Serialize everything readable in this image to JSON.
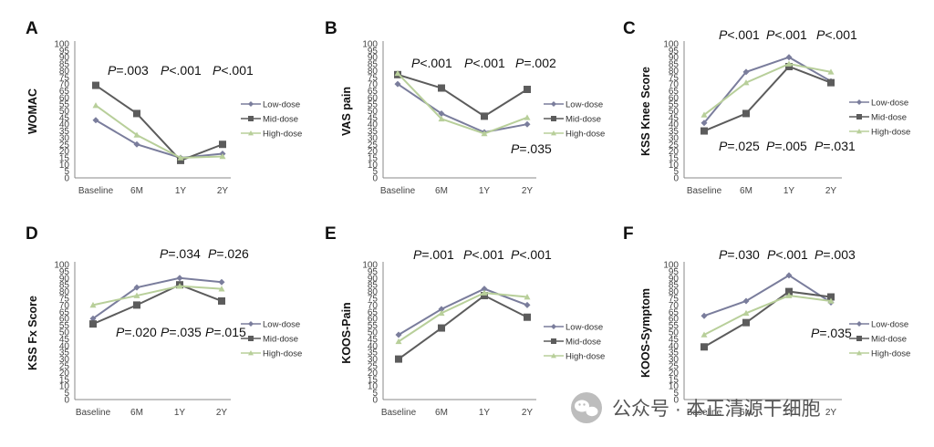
{
  "colors": {
    "low": "#7a7d9c",
    "mid": "#5c5c5c",
    "high": "#b8cf9a"
  },
  "watermark": {
    "text": "公众号 · 本正清源干细胞",
    "icon": "wechat-icon"
  },
  "chart_data": [
    {
      "type": "line",
      "panel": "A",
      "ylabel": "WOMAC",
      "categories": [
        "Baseline",
        "6M",
        "1Y",
        "2Y"
      ],
      "yticks": [
        "0",
        "5",
        "10",
        "15",
        "20",
        "25",
        "30",
        "35",
        "40",
        "45",
        "50",
        "55",
        "60",
        "65",
        "70",
        "75",
        "80",
        "85",
        "90",
        "95",
        "100"
      ],
      "ylim": [
        0,
        100
      ],
      "series": [
        {
          "name": "Low-dose",
          "values": [
            43,
            25,
            15,
            18
          ]
        },
        {
          "name": "Mid-dose",
          "values": [
            69,
            48,
            13,
            25
          ]
        },
        {
          "name": "High-dose",
          "values": [
            54,
            32,
            15,
            16
          ]
        }
      ],
      "pvalues_top": [
        {
          "prefix": "P",
          "value": "=.003"
        },
        {
          "prefix": "P",
          "value": "<.001"
        },
        {
          "prefix": "P",
          "value": "<.001"
        }
      ],
      "pvalues_bottom": [],
      "legend": "right"
    },
    {
      "type": "line",
      "panel": "B",
      "ylabel": "VAS pain",
      "categories": [
        "Baseline",
        "6M",
        "1Y",
        "2Y"
      ],
      "yticks": [
        "0",
        "5",
        "10",
        "15",
        "20",
        "25",
        "30",
        "35",
        "40",
        "45",
        "50",
        "55",
        "60",
        "65",
        "70",
        "75",
        "80",
        "85",
        "90",
        "95",
        "100"
      ],
      "ylim": [
        0,
        100
      ],
      "series": [
        {
          "name": "Low-dose",
          "values": [
            70,
            48,
            34,
            40
          ]
        },
        {
          "name": "Mid-dose",
          "values": [
            77,
            67,
            46,
            66
          ]
        },
        {
          "name": "High-dose",
          "values": [
            78,
            44,
            33,
            45
          ]
        }
      ],
      "pvalues_top": [
        {
          "prefix": "P",
          "value": "<.001"
        },
        {
          "prefix": "P",
          "value": "<.001"
        },
        {
          "prefix": "P",
          "value": "=.002"
        }
      ],
      "pvalues_bottom": [
        {
          "prefix": "P",
          "value": "=.035"
        }
      ],
      "legend": "right"
    },
    {
      "type": "line",
      "panel": "C",
      "ylabel": "KSS Knee Score",
      "categories": [
        "Baseline",
        "6M",
        "1Y",
        "2Y"
      ],
      "yticks": [
        "0",
        "5",
        "10",
        "15",
        "20",
        "25",
        "30",
        "35",
        "40",
        "45",
        "50",
        "55",
        "60",
        "65",
        "70",
        "75",
        "80",
        "85",
        "90",
        "95",
        "100"
      ],
      "ylim": [
        0,
        100
      ],
      "series": [
        {
          "name": "Low-dose",
          "values": [
            41,
            79,
            90,
            72
          ]
        },
        {
          "name": "Mid-dose",
          "values": [
            35,
            48,
            83,
            71
          ]
        },
        {
          "name": "High-dose",
          "values": [
            47,
            71,
            85,
            79
          ]
        }
      ],
      "pvalues_top": [
        {
          "prefix": "P",
          "value": "<.001"
        },
        {
          "prefix": "P",
          "value": "<.001"
        },
        {
          "prefix": "P",
          "value": "<.001"
        }
      ],
      "pvalues_bottom": [
        {
          "prefix": "P",
          "value": "=.025"
        },
        {
          "prefix": "P",
          "value": "=.005"
        },
        {
          "prefix": "P",
          "value": "=.031"
        }
      ],
      "legend": "right"
    },
    {
      "type": "line",
      "panel": "D",
      "ylabel": "KSS Fx Score",
      "categories": [
        "Baseline",
        "6M",
        "1Y",
        "2Y"
      ],
      "yticks": [
        "0",
        "5",
        "10",
        "15",
        "20",
        "25",
        "30",
        "35",
        "40",
        "45",
        "50",
        "55",
        "60",
        "65",
        "70",
        "75",
        "80",
        "85",
        "90",
        "95",
        "100"
      ],
      "ylim": [
        0,
        100
      ],
      "series": [
        {
          "name": "Low-dose",
          "values": [
            60,
            83,
            90,
            87
          ]
        },
        {
          "name": "Mid-dose",
          "values": [
            56,
            70,
            85,
            73
          ]
        },
        {
          "name": "High-dose",
          "values": [
            70,
            77,
            84,
            82
          ]
        }
      ],
      "pvalues_top": [
        {
          "prefix": "P",
          "value": "=.034"
        },
        {
          "prefix": "P",
          "value": "=.026"
        }
      ],
      "pvalues_bottom": [
        {
          "prefix": "P",
          "value": "=.020"
        },
        {
          "prefix": "P",
          "value": "=.035"
        },
        {
          "prefix": "P",
          "value": "=.015"
        }
      ],
      "legend": "right"
    },
    {
      "type": "line",
      "panel": "E",
      "ylabel": "KOOS-Pain",
      "categories": [
        "Baseline",
        "6M",
        "1Y",
        "2Y"
      ],
      "yticks": [
        "0",
        "5",
        "10",
        "15",
        "20",
        "25",
        "30",
        "35",
        "40",
        "45",
        "50",
        "55",
        "60",
        "65",
        "70",
        "75",
        "80",
        "85",
        "90",
        "95",
        "100"
      ],
      "ylim": [
        0,
        100
      ],
      "series": [
        {
          "name": "Low-dose",
          "values": [
            48,
            67,
            82,
            70
          ]
        },
        {
          "name": "Mid-dose",
          "values": [
            30,
            53,
            77,
            61
          ]
        },
        {
          "name": "High-dose",
          "values": [
            43,
            64,
            79,
            76
          ]
        }
      ],
      "pvalues_top": [
        {
          "prefix": "P",
          "value": "=.001"
        },
        {
          "prefix": "P",
          "value": "<.001"
        },
        {
          "prefix": "P",
          "value": "<.001"
        }
      ],
      "pvalues_bottom": [],
      "legend": "right"
    },
    {
      "type": "line",
      "panel": "F",
      "ylabel": "KOOS-Symptom",
      "categories": [
        "Baseline",
        "6M",
        "1Y",
        "2Y"
      ],
      "yticks": [
        "0",
        "5",
        "10",
        "15",
        "20",
        "25",
        "30",
        "35",
        "40",
        "45",
        "50",
        "55",
        "60",
        "65",
        "70",
        "75",
        "80",
        "85",
        "90",
        "95",
        "100"
      ],
      "ylim": [
        0,
        100
      ],
      "series": [
        {
          "name": "Low-dose",
          "values": [
            62,
            73,
            92,
            72
          ]
        },
        {
          "name": "Mid-dose",
          "values": [
            39,
            57,
            80,
            76
          ]
        },
        {
          "name": "High-dose",
          "values": [
            48,
            64,
            77,
            73
          ]
        }
      ],
      "pvalues_top": [
        {
          "prefix": "P",
          "value": "=.030"
        },
        {
          "prefix": "P",
          "value": "<.001"
        },
        {
          "prefix": "P",
          "value": "=.003"
        }
      ],
      "pvalues_bottom": [
        {
          "prefix": "P",
          "value": "=.035"
        }
      ],
      "legend": "right"
    }
  ]
}
